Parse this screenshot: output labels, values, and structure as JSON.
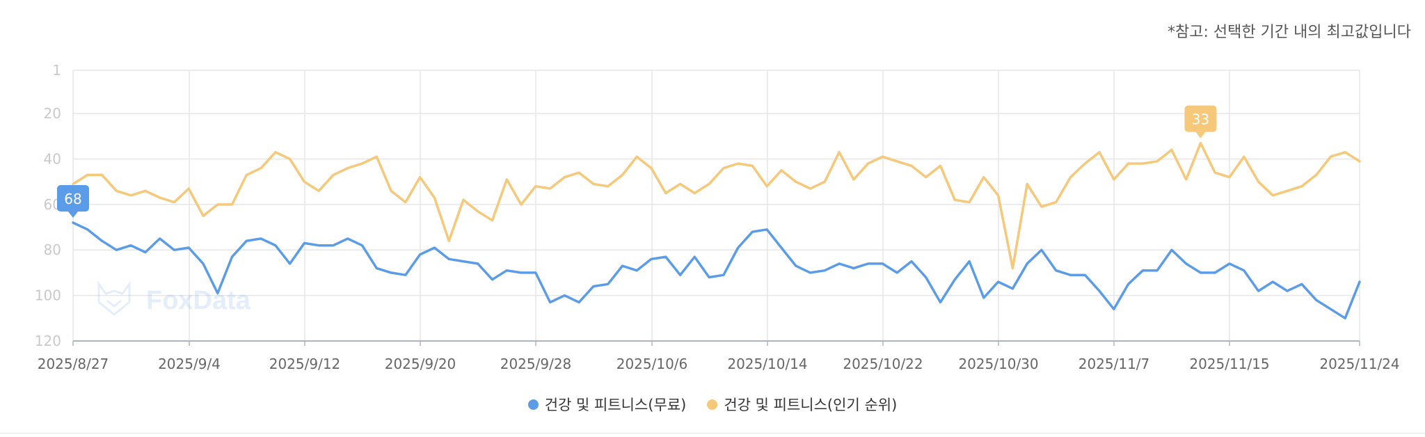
{
  "note": "*참고: 선택한 기간 내의 최고값입니다",
  "watermark": "FoxData",
  "colors": {
    "free": "#5b9ce8",
    "popular": "#f6c87a",
    "grid": "#e6e6e6",
    "axis": "#aab4c3",
    "tick": "#c9c9c9",
    "xtick": "#666666"
  },
  "chart_data": {
    "type": "line",
    "x_ticks": [
      "2025/8/27",
      "2025/9/4",
      "2025/9/12",
      "2025/9/20",
      "2025/9/28",
      "2025/10/6",
      "2025/10/14",
      "2025/10/22",
      "2025/10/30",
      "2025/11/7",
      "2025/11/15",
      "2025/11/24"
    ],
    "y_ticks": [
      1,
      20,
      40,
      60,
      80,
      100,
      120
    ],
    "ylim": [
      1,
      120
    ],
    "y_inverted": true,
    "grid": true,
    "legend_position": "bottom",
    "series": [
      {
        "name": "건강 및 피트니스(무료)",
        "color": "#5b9ce8",
        "peak_label": "68",
        "peak_index": 0,
        "values": [
          68,
          71,
          76,
          80,
          78,
          81,
          75,
          80,
          79,
          86,
          99,
          83,
          76,
          75,
          78,
          86,
          77,
          78,
          78,
          75,
          78,
          88,
          90,
          91,
          82,
          79,
          84,
          85,
          86,
          93,
          89,
          90,
          90,
          103,
          100,
          103,
          96,
          95,
          87,
          89,
          84,
          83,
          91,
          83,
          92,
          91,
          79,
          72,
          71,
          79,
          87,
          90,
          89,
          86,
          88,
          86,
          86,
          90,
          85,
          92,
          103,
          93,
          85,
          101,
          94,
          97,
          86,
          80,
          89,
          91,
          91,
          98,
          106,
          95,
          89,
          89,
          80,
          86,
          90,
          90,
          86,
          89,
          98,
          94,
          98,
          95,
          102,
          106,
          110,
          94
        ]
      },
      {
        "name": "건강 및 피트니스(인기 순위)",
        "color": "#f6c87a",
        "peak_label": "33",
        "peak_index": 78,
        "values": [
          51,
          47,
          47,
          54,
          56,
          54,
          57,
          59,
          53,
          65,
          60,
          60,
          47,
          44,
          37,
          40,
          50,
          54,
          47,
          44,
          42,
          39,
          54,
          59,
          48,
          57,
          76,
          58,
          63,
          67,
          49,
          60,
          52,
          53,
          48,
          46,
          51,
          52,
          47,
          39,
          44,
          55,
          51,
          55,
          51,
          44,
          42,
          43,
          52,
          45,
          50,
          53,
          50,
          37,
          49,
          42,
          39,
          41,
          43,
          48,
          43,
          58,
          59,
          48,
          56,
          88,
          51,
          61,
          59,
          48,
          42,
          37,
          49,
          42,
          42,
          41,
          36,
          49,
          33,
          46,
          48,
          39,
          50,
          56,
          54,
          52,
          47,
          39,
          37,
          41
        ]
      }
    ]
  }
}
